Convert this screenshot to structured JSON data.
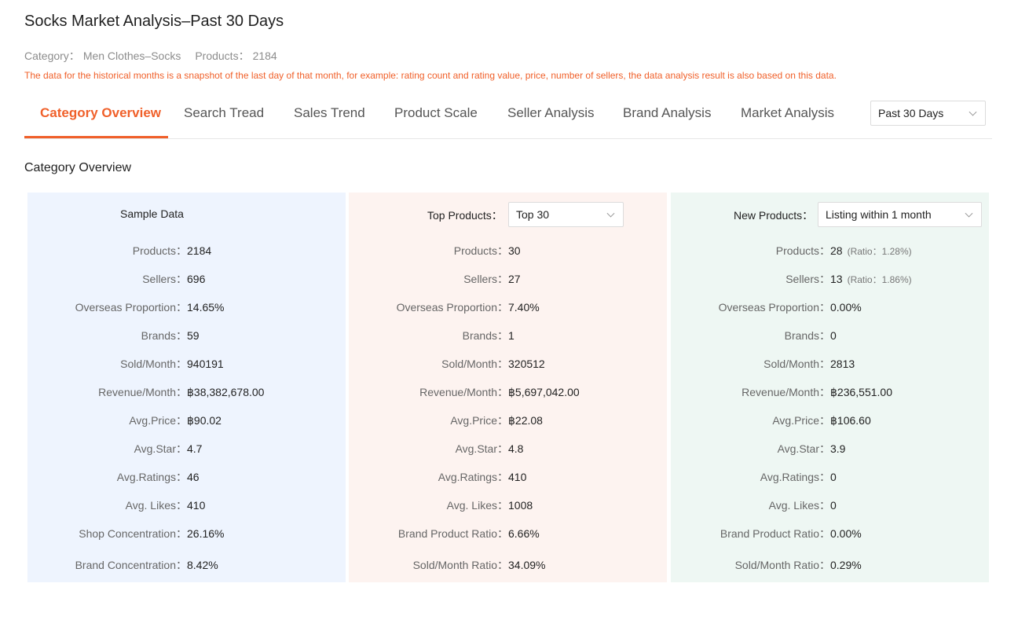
{
  "header": {
    "title": "Socks Market Analysis–Past 30 Days",
    "category_label": "Category：",
    "category_value": "Men Clothes–Socks",
    "products_label": "Products：",
    "products_value": "2184",
    "notice": "The data for the historical months is a snapshot of the last day of that month, for example: rating count and rating value, price, number of sellers, the data analysis result is also based on this data."
  },
  "tabs": [
    {
      "label": "Category Overview",
      "active": true
    },
    {
      "label": "Search Tread"
    },
    {
      "label": "Sales Trend"
    },
    {
      "label": "Product Scale"
    },
    {
      "label": "Seller Analysis"
    },
    {
      "label": "Brand Analysis"
    },
    {
      "label": "Market Analysis"
    }
  ],
  "period_select": {
    "value": "Past 30 Days"
  },
  "section_title": "Category Overview",
  "colors": {
    "accent": "#f0602a",
    "panel_sample": "#eef4fe",
    "panel_top": "#fdf3f0",
    "panel_new": "#eef7f3"
  },
  "panels": [
    {
      "title": "Sample Data",
      "rows": [
        {
          "label": "Products：",
          "value": "2184"
        },
        {
          "label": "Sellers：",
          "value": "696"
        },
        {
          "label": "Overseas Proportion：",
          "value": "14.65%"
        },
        {
          "label": "Brands：",
          "value": "59"
        },
        {
          "label": "Sold/Month：",
          "value": "940191"
        },
        {
          "label": "Revenue/Month：",
          "value": "฿38,382,678.00"
        },
        {
          "label": "Avg.Price：",
          "value": "฿90.02"
        },
        {
          "label": "Avg.Star：",
          "value": "4.7"
        },
        {
          "label": "Avg.Ratings：",
          "value": "46"
        },
        {
          "label": "Avg. Likes：",
          "value": "410"
        },
        {
          "label": "Shop Concentration：",
          "value": "26.16%"
        },
        {
          "label": "Brand Concentration：",
          "value": "8.42%"
        }
      ]
    },
    {
      "title": "Top Products：",
      "select": "Top 30",
      "rows": [
        {
          "label": "Products：",
          "value": "30"
        },
        {
          "label": "Sellers：",
          "value": "27"
        },
        {
          "label": "Overseas Proportion：",
          "value": "7.40%"
        },
        {
          "label": "Brands：",
          "value": "1"
        },
        {
          "label": "Sold/Month：",
          "value": "320512"
        },
        {
          "label": "Revenue/Month：",
          "value": "฿5,697,042.00"
        },
        {
          "label": "Avg.Price：",
          "value": "฿22.08"
        },
        {
          "label": "Avg.Star：",
          "value": "4.8"
        },
        {
          "label": "Avg.Ratings：",
          "value": "410"
        },
        {
          "label": "Avg. Likes：",
          "value": "1008"
        },
        {
          "label": "Brand Product Ratio：",
          "value": "6.66%"
        },
        {
          "label": "Sold/Month Ratio：",
          "value": "34.09%"
        }
      ]
    },
    {
      "title": "New Products：",
      "select": "Listing within 1 month",
      "rows": [
        {
          "label": "Products：",
          "value": "28",
          "ratio": "(Ratio：1.28%)"
        },
        {
          "label": "Sellers：",
          "value": "13",
          "ratio": "(Ratio：1.86%)"
        },
        {
          "label": "Overseas Proportion：",
          "value": "0.00%"
        },
        {
          "label": "Brands：",
          "value": "0"
        },
        {
          "label": "Sold/Month：",
          "value": "2813"
        },
        {
          "label": "Revenue/Month：",
          "value": "฿236,551.00"
        },
        {
          "label": "Avg.Price：",
          "value": "฿106.60"
        },
        {
          "label": "Avg.Star：",
          "value": "3.9"
        },
        {
          "label": "Avg.Ratings：",
          "value": "0"
        },
        {
          "label": "Avg. Likes：",
          "value": "0"
        },
        {
          "label": "Brand Product Ratio：",
          "value": "0.00%"
        },
        {
          "label": "Sold/Month Ratio：",
          "value": "0.29%"
        }
      ]
    }
  ]
}
